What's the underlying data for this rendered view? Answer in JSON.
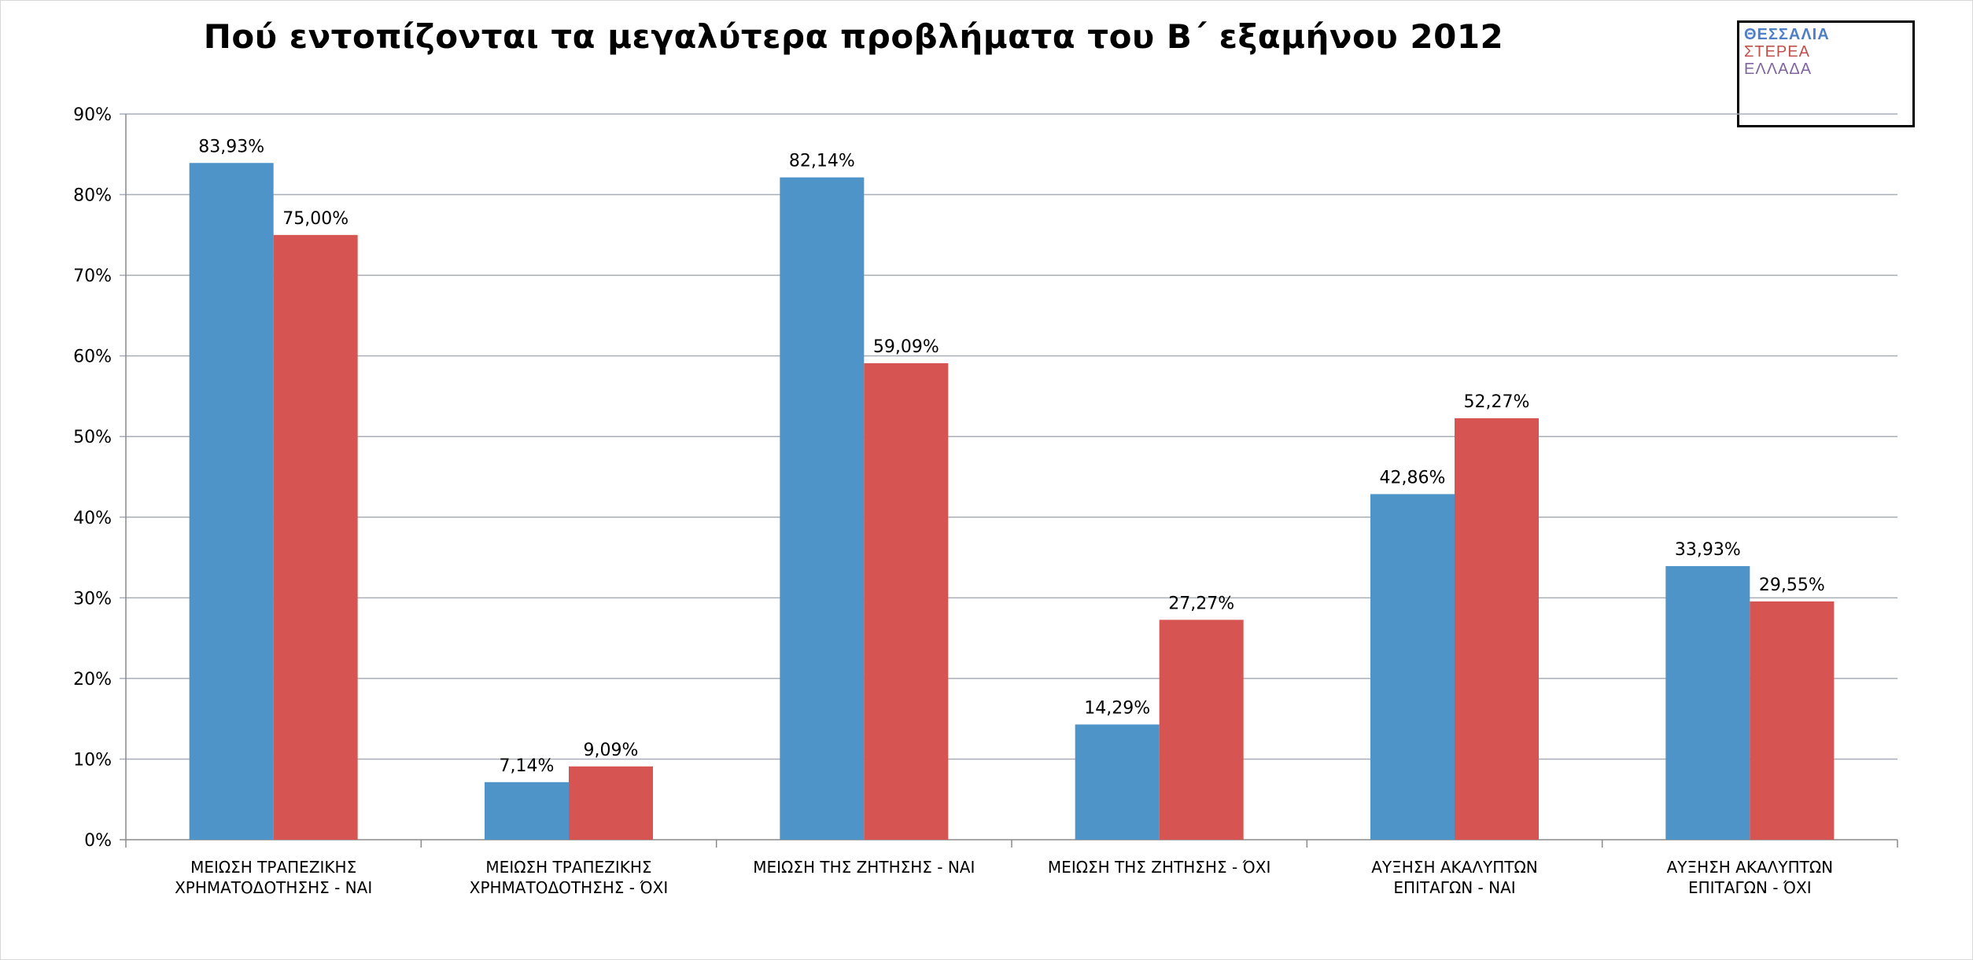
{
  "chart_data": {
    "type": "bar",
    "title": "Πού εντοπίζονται τα μεγαλύτερα προβλήματα του Β΄ εξαμήνου 2012",
    "categories": [
      "ΜΕΙΩΣΗ ΤΡΑΠΕΖΙΚΗΣ\nΧΡΗΜΑΤΟΔΟΤΗΣΗΣ - ΝΑΙ",
      "ΜΕΙΩΣΗ ΤΡΑΠΕΖΙΚΗΣ\nΧΡΗΜΑΤΟΔΟΤΗΣΗΣ - ΌΧΙ",
      "ΜΕΙΩΣΗ ΤΗΣ ΖΗΤΗΣΗΣ - ΝΑΙ",
      "ΜΕΙΩΣΗ ΤΗΣ ΖΗΤΗΣΗΣ - ΌΧΙ",
      "ΑΥΞΗΣΗ ΑΚΑΛΥΠΤΩΝ\nΕΠΙΤΑΓΩΝ - ΝΑΙ",
      "ΑΥΞΗΣΗ ΑΚΑΛΥΠΤΩΝ\nΕΠΙΤΑΓΩΝ - ΌΧΙ"
    ],
    "series": [
      {
        "name": "ΘΕΣΣΑΛΙΑ",
        "color": "#4f94c9",
        "values": [
          83.93,
          7.14,
          82.14,
          14.29,
          42.86,
          33.93
        ],
        "labels": [
          "83,93%",
          "7,14%",
          "82,14%",
          "14,29%",
          "42,86%",
          "33,93%"
        ]
      },
      {
        "name": "ΣΤΕΡΕΑ ΕΛΛΑΔΑ",
        "color": "#d65553",
        "values": [
          75.0,
          9.09,
          59.09,
          27.27,
          52.27,
          29.55
        ],
        "labels": [
          "75,00%",
          "9,09%",
          "59,09%",
          "27,27%",
          "52,27%",
          "29,55%"
        ]
      }
    ],
    "ylim": [
      0,
      90
    ],
    "yticks": [
      0,
      10,
      20,
      30,
      40,
      50,
      60,
      70,
      80,
      90
    ],
    "ytick_labels": [
      "0%",
      "10%",
      "20%",
      "30%",
      "40%",
      "50%",
      "60%",
      "70%",
      "80%",
      "90%"
    ],
    "xlabel": "",
    "ylabel": "",
    "grid": true,
    "legend_position": "top-right"
  },
  "legend": {
    "line1": "ΘΕΣΣΑΛΙΑ",
    "line2": "ΣΤΕΡΕΑ",
    "line3": "ΕΛΛΑΔΑ",
    "line1_color": "#4f7fc8",
    "line2_color": "#c0504d",
    "line3_color": "#8064a2"
  }
}
